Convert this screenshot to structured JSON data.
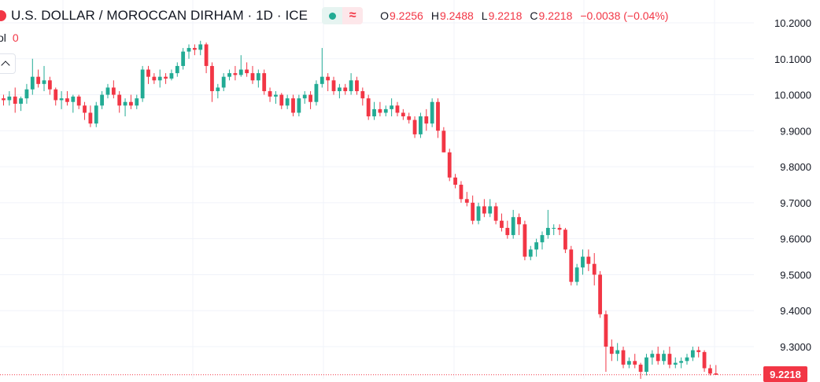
{
  "header": {
    "symbol_title": "U.S. DOLLAR / MOROCCAN DIRHAM · 1D · ICE",
    "delay_symbol": "≈",
    "ohlc": {
      "o_label": "O",
      "o_value": "9.2256",
      "h_label": "H",
      "h_value": "9.2488",
      "l_label": "L",
      "l_value": "9.2218",
      "c_label": "C",
      "c_value": "9.2218",
      "change": "−0.0038 (−0.04%)"
    },
    "volume_label": "ol",
    "volume_value": "0"
  },
  "last_price_tag": "9.2218",
  "colors": {
    "up": "#22ab94",
    "down": "#f23645",
    "grid": "#f0f3fa",
    "axis_text": "#131722"
  },
  "chart_data": {
    "type": "candlestick",
    "title": "U.S. DOLLAR / MOROCCAN DIRHAM · 1D · ICE",
    "y_axis_position": "right",
    "ylim": [
      9.22,
      10.24
    ],
    "y_ticks": [
      "10.2000",
      "10.1000",
      "10.0000",
      "9.9000",
      "9.8000",
      "9.7000",
      "9.6000",
      "9.5000",
      "9.4000",
      "9.3000"
    ],
    "grid": true,
    "last_price": 9.2218,
    "candles": [
      [
        9.99,
        10.0,
        9.97,
        9.985
      ],
      [
        9.985,
        10.01,
        9.97,
        9.995
      ],
      [
        9.995,
        10.02,
        9.95,
        9.975
      ],
      [
        9.975,
        9.995,
        9.955,
        9.99
      ],
      [
        9.99,
        10.03,
        9.975,
        10.015
      ],
      [
        10.015,
        10.1,
        10.0,
        10.05
      ],
      [
        10.05,
        10.07,
        10.02,
        10.03
      ],
      [
        10.03,
        10.08,
        10.01,
        10.04
      ],
      [
        10.04,
        10.05,
        10.0,
        10.015
      ],
      [
        10.015,
        10.02,
        9.97,
        9.985
      ],
      [
        9.985,
        10.01,
        9.96,
        9.99
      ],
      [
        9.99,
        10.01,
        9.97,
        9.98
      ],
      [
        9.98,
        10.0,
        9.95,
        9.995
      ],
      [
        9.995,
        10.0,
        9.96,
        9.97
      ],
      [
        9.97,
        9.98,
        9.93,
        9.95
      ],
      [
        9.95,
        9.97,
        9.91,
        9.92
      ],
      [
        9.92,
        9.98,
        9.91,
        9.97
      ],
      [
        9.97,
        10.01,
        9.96,
        10.0
      ],
      [
        10.0,
        10.03,
        9.99,
        10.02
      ],
      [
        10.02,
        10.04,
        9.99,
        10.0
      ],
      [
        10.0,
        10.01,
        9.95,
        9.97
      ],
      [
        9.97,
        9.99,
        9.94,
        9.98
      ],
      [
        9.98,
        10.0,
        9.96,
        9.97
      ],
      [
        9.97,
        10.0,
        9.96,
        9.99
      ],
      [
        9.99,
        10.08,
        9.98,
        10.07
      ],
      [
        10.07,
        10.08,
        10.03,
        10.05
      ],
      [
        10.05,
        10.06,
        10.03,
        10.04
      ],
      [
        10.04,
        10.07,
        10.02,
        10.05
      ],
      [
        10.05,
        10.06,
        10.03,
        10.045
      ],
      [
        10.045,
        10.07,
        10.04,
        10.06
      ],
      [
        10.06,
        10.09,
        10.05,
        10.08
      ],
      [
        10.08,
        10.13,
        10.07,
        10.12
      ],
      [
        10.12,
        10.14,
        10.1,
        10.13
      ],
      [
        10.13,
        10.14,
        10.11,
        10.125
      ],
      [
        10.125,
        10.15,
        10.11,
        10.14
      ],
      [
        10.14,
        10.145,
        10.06,
        10.08
      ],
      [
        10.08,
        10.09,
        9.98,
        10.01
      ],
      [
        10.01,
        10.03,
        9.99,
        10.02
      ],
      [
        10.02,
        10.06,
        10.01,
        10.05
      ],
      [
        10.05,
        10.07,
        10.04,
        10.06
      ],
      [
        10.06,
        10.08,
        10.04,
        10.055
      ],
      [
        10.055,
        10.11,
        10.05,
        10.07
      ],
      [
        10.07,
        10.09,
        10.05,
        10.06
      ],
      [
        10.06,
        10.08,
        10.03,
        10.04
      ],
      [
        10.04,
        10.07,
        10.02,
        10.06
      ],
      [
        10.06,
        10.07,
        10.0,
        10.01
      ],
      [
        10.01,
        10.02,
        9.98,
        9.995
      ],
      [
        9.995,
        10.01,
        9.975,
        10.0
      ],
      [
        10.0,
        10.005,
        9.96,
        9.97
      ],
      [
        9.97,
        10.0,
        9.96,
        9.99
      ],
      [
        9.99,
        10.0,
        9.94,
        9.95
      ],
      [
        9.95,
        10.0,
        9.94,
        9.99
      ],
      [
        9.99,
        10.01,
        9.975,
        10.0
      ],
      [
        10.0,
        10.01,
        9.96,
        9.98
      ],
      [
        9.98,
        10.04,
        9.97,
        10.03
      ],
      [
        10.03,
        10.13,
        10.02,
        10.05
      ],
      [
        10.05,
        10.06,
        10.01,
        10.04
      ],
      [
        10.04,
        10.05,
        10.0,
        10.01
      ],
      [
        10.01,
        10.03,
        9.99,
        10.02
      ],
      [
        10.02,
        10.03,
        10.0,
        10.01
      ],
      [
        10.01,
        10.06,
        10.0,
        10.04
      ],
      [
        10.04,
        10.05,
        10.0,
        10.01
      ],
      [
        10.01,
        10.02,
        9.97,
        9.99
      ],
      [
        9.99,
        10.0,
        9.93,
        9.94
      ],
      [
        9.94,
        9.98,
        9.93,
        9.96
      ],
      [
        9.96,
        9.98,
        9.94,
        9.95
      ],
      [
        9.95,
        9.97,
        9.94,
        9.96
      ],
      [
        9.96,
        9.99,
        9.94,
        9.97
      ],
      [
        9.97,
        9.98,
        9.94,
        9.95
      ],
      [
        9.95,
        9.96,
        9.93,
        9.94
      ],
      [
        9.94,
        9.95,
        9.92,
        9.93
      ],
      [
        9.93,
        9.94,
        9.88,
        9.89
      ],
      [
        9.89,
        9.95,
        9.88,
        9.94
      ],
      [
        9.94,
        9.96,
        9.9,
        9.92
      ],
      [
        9.92,
        9.99,
        9.91,
        9.98
      ],
      [
        9.98,
        9.99,
        9.88,
        9.9
      ],
      [
        9.9,
        9.91,
        9.84,
        9.84
      ],
      [
        9.84,
        9.85,
        9.76,
        9.77
      ],
      [
        9.77,
        9.78,
        9.74,
        9.75
      ],
      [
        9.75,
        9.76,
        9.7,
        9.71
      ],
      [
        9.71,
        9.73,
        9.69,
        9.7
      ],
      [
        9.7,
        9.72,
        9.64,
        9.65
      ],
      [
        9.65,
        9.7,
        9.64,
        9.69
      ],
      [
        9.69,
        9.71,
        9.66,
        9.67
      ],
      [
        9.67,
        9.71,
        9.66,
        9.69
      ],
      [
        9.69,
        9.7,
        9.64,
        9.65
      ],
      [
        9.65,
        9.67,
        9.62,
        9.63
      ],
      [
        9.63,
        9.65,
        9.6,
        9.61
      ],
      [
        9.61,
        9.68,
        9.6,
        9.66
      ],
      [
        9.66,
        9.67,
        9.61,
        9.64
      ],
      [
        9.64,
        9.65,
        9.54,
        9.55
      ],
      [
        9.55,
        9.58,
        9.54,
        9.57
      ],
      [
        9.57,
        9.6,
        9.55,
        9.59
      ],
      [
        9.59,
        9.62,
        9.57,
        9.61
      ],
      [
        9.61,
        9.68,
        9.6,
        9.63
      ],
      [
        9.63,
        9.64,
        9.61,
        9.63
      ],
      [
        9.63,
        9.64,
        9.61,
        9.625
      ],
      [
        9.625,
        9.63,
        9.56,
        9.57
      ],
      [
        9.57,
        9.58,
        9.47,
        9.48
      ],
      [
        9.48,
        9.53,
        9.47,
        9.52
      ],
      [
        9.52,
        9.57,
        9.5,
        9.55
      ],
      [
        9.55,
        9.57,
        9.51,
        9.53
      ],
      [
        9.53,
        9.56,
        9.47,
        9.5
      ],
      [
        9.5,
        9.51,
        9.38,
        9.39
      ],
      [
        9.39,
        9.4,
        9.23,
        9.3
      ],
      [
        9.3,
        9.32,
        9.26,
        9.28
      ],
      [
        9.28,
        9.31,
        9.26,
        9.29
      ],
      [
        9.29,
        9.3,
        9.24,
        9.25
      ],
      [
        9.25,
        9.27,
        9.24,
        9.26
      ],
      [
        9.26,
        9.28,
        9.24,
        9.25
      ],
      [
        9.25,
        9.255,
        9.21,
        9.23
      ],
      [
        9.23,
        9.28,
        9.22,
        9.27
      ],
      [
        9.27,
        9.29,
        9.25,
        9.28
      ],
      [
        9.28,
        9.3,
        9.25,
        9.26
      ],
      [
        9.26,
        9.29,
        9.25,
        9.28
      ],
      [
        9.28,
        9.3,
        9.24,
        9.25
      ],
      [
        9.25,
        9.27,
        9.24,
        9.255
      ],
      [
        9.255,
        9.27,
        9.24,
        9.26
      ],
      [
        9.26,
        9.28,
        9.25,
        9.27
      ],
      [
        9.27,
        9.3,
        9.26,
        9.29
      ],
      [
        9.29,
        9.3,
        9.27,
        9.285
      ],
      [
        9.285,
        9.29,
        9.23,
        9.24
      ],
      [
        9.24,
        9.25,
        9.22,
        9.225
      ],
      [
        9.2256,
        9.2488,
        9.2218,
        9.2218
      ]
    ]
  }
}
